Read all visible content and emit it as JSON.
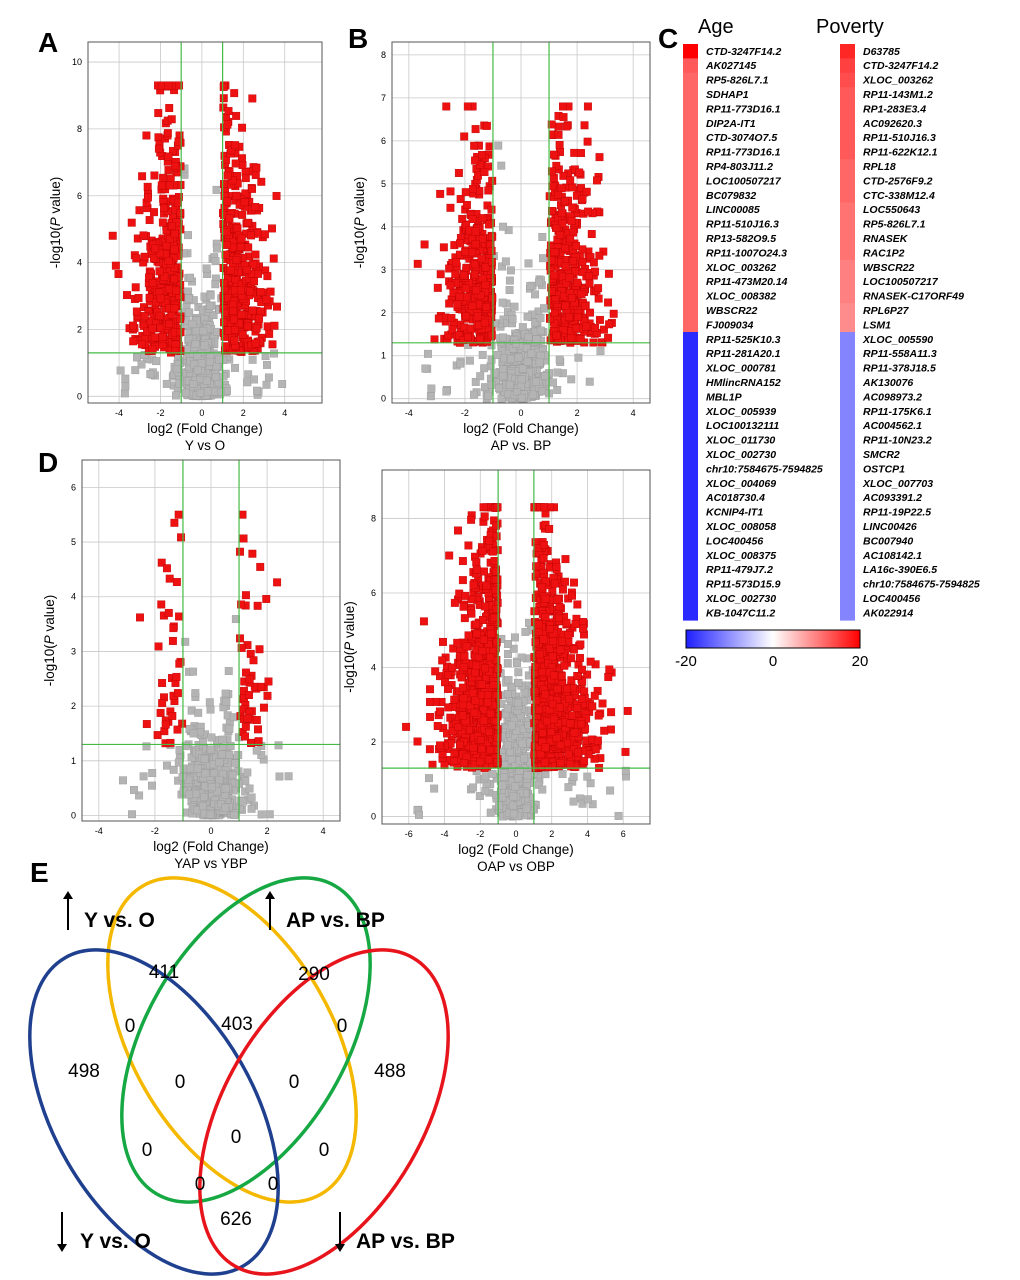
{
  "panels": {
    "A": {
      "letter": "A",
      "title": "Y vs O",
      "xlabel": "log2 (Fold Change)",
      "ylabel_prefix": "-log10(",
      "ylabel_italic": "P",
      "ylabel_suffix": " value)"
    },
    "B": {
      "letter": "B",
      "title": "AP vs. BP",
      "xlabel": "log2 (Fold Change)",
      "ylabel_prefix": "-log10(",
      "ylabel_italic": "P",
      "ylabel_suffix": " value)"
    },
    "C": {
      "letter": "C"
    },
    "D": {
      "letter": "D",
      "title": "YAP vs YBP",
      "xlabel": "log2 (Fold Change)",
      "ylabel_prefix": "-log10(",
      "ylabel_italic": "P",
      "ylabel_suffix": " value)"
    },
    "D2": {
      "title": "OAP vs OBP",
      "xlabel": "log2 (Fold Change)",
      "ylabel_prefix": "-log10(",
      "ylabel_italic": "P",
      "ylabel_suffix": " value)"
    },
    "E": {
      "letter": "E"
    }
  },
  "chart_data": [
    {
      "type": "scatter",
      "panel": "A",
      "title": "Y vs O",
      "xlabel": "log2 (Fold Change)",
      "ylabel": "-log10(P value)",
      "xlim": [
        -5.5,
        5.8
      ],
      "ylim": [
        -0.2,
        10.6
      ],
      "xticks": [
        -4,
        -2,
        0,
        2,
        4
      ],
      "yticks": [
        0,
        2,
        4,
        6,
        8,
        10
      ],
      "thresholds": {
        "x": [
          -1,
          1
        ],
        "y": 1.3
      },
      "colors": {
        "significant": "#ee1111",
        "not_significant": "#b4b4b4",
        "threshold": "#44bb44"
      },
      "shape": {
        "xspread": 1.35,
        "maxAbsX": 4.4,
        "ymax": 9.3,
        "peak": 0.95
      },
      "points": {
        "significant": 750,
        "not_significant": 600
      }
    },
    {
      "type": "scatter",
      "panel": "B",
      "title": "AP vs. BP",
      "xlabel": "log2 (Fold Change)",
      "ylabel": "-log10(P value)",
      "xlim": [
        -4.6,
        4.6
      ],
      "ylim": [
        -0.1,
        8.3
      ],
      "xticks": [
        -4,
        -2,
        0,
        2,
        4
      ],
      "yticks": [
        0,
        1,
        2,
        3,
        4,
        5,
        6,
        7,
        8
      ],
      "thresholds": {
        "x": [
          -1,
          1
        ],
        "y": 1.3
      },
      "colors": {
        "significant": "#ee1111",
        "not_significant": "#b4b4b4",
        "threshold": "#44bb44"
      },
      "shape": {
        "xspread": 1.1,
        "maxAbsX": 3.8,
        "ymax": 6.8,
        "peak": 0.6
      },
      "points": {
        "significant": 700,
        "not_significant": 650
      }
    },
    {
      "type": "scatter",
      "panel": "D",
      "title": "YAP vs YBP",
      "xlabel": "log2 (Fold Change)",
      "ylabel": "-log10(P value)",
      "xlim": [
        -4.6,
        4.6
      ],
      "ylim": [
        -0.1,
        6.5
      ],
      "xticks": [
        -4,
        -2,
        0,
        2,
        4
      ],
      "yticks": [
        0,
        1,
        2,
        3,
        4,
        5,
        6
      ],
      "thresholds": {
        "x": [
          -1,
          1
        ],
        "y": 1.3
      },
      "colors": {
        "significant": "#ee1111",
        "not_significant": "#b4b4b4",
        "threshold": "#44bb44"
      },
      "shape": {
        "xspread": 0.75,
        "maxAbsX": 3.5,
        "ymax": 5.5,
        "peak": 0.4
      },
      "points": {
        "significant": 90,
        "not_significant": 650
      }
    },
    {
      "type": "scatter",
      "panel": "D2",
      "title": "OAP vs OBP",
      "xlabel": "log2 (Fold Change)",
      "ylabel": "-log10(P value)",
      "xlim": [
        -7.5,
        7.5
      ],
      "ylim": [
        -0.2,
        9.3
      ],
      "xticks": [
        -6,
        -4,
        -2,
        0,
        2,
        4,
        6
      ],
      "yticks": [
        0,
        2,
        4,
        6,
        8
      ],
      "thresholds": {
        "x": [
          -1,
          1
        ],
        "y": 1.3
      },
      "colors": {
        "significant": "#ee1111",
        "not_significant": "#b4b4b4",
        "threshold": "#44bb44"
      },
      "shape": {
        "xspread": 1.9,
        "maxAbsX": 6.9,
        "ymax": 8.3,
        "peak": 1.4
      },
      "points": {
        "significant": 1600,
        "not_significant": 700
      }
    },
    {
      "type": "heatmap",
      "panel": "C",
      "columns": [
        {
          "header": "Age",
          "genes": [
            "CTD-3247F14.2",
            "AK027145",
            "RP5-826L7.1",
            "SDHAP1",
            "RP11-773D16.1",
            "DIP2A-IT1",
            "CTD-3074O7.5",
            "RP11-773D16.1",
            "RP4-803J11.2",
            "LOC100507217",
            "BC079832",
            "LINC00085",
            "RP11-510J16.3",
            "RP13-582O9.5",
            "RP11-1007O24.3",
            "XLOC_003262",
            "RP11-473M20.14",
            "XLOC_008382",
            "WBSCR22",
            "FJ009034",
            "RP11-525K10.3",
            "RP11-281A20.1",
            "XLOC_000781",
            "HMlincRNA152",
            "MBL1P",
            "XLOC_005939",
            "LOC100132111",
            "XLOC_011730",
            "XLOC_002730",
            "chr10:7584675-7594825",
            "XLOC_004069",
            "AC018730.4",
            "KCNIP4-IT1",
            "XLOC_008058",
            "LOC400456",
            "XLOC_008375",
            "RP11-479J7.2",
            "RP11-573D15.9",
            "XLOC_002730",
            "KB-1047C11.2"
          ],
          "values": [
            20,
            13,
            12,
            12,
            12,
            12,
            12,
            12,
            12,
            12,
            12,
            12,
            12,
            12,
            12,
            12,
            12,
            12,
            12,
            12,
            -19,
            -19,
            -19,
            -19,
            -19,
            -19,
            -19,
            -19,
            -19,
            -19,
            -19,
            -19,
            -19,
            -19,
            -19,
            -19,
            -19,
            -19,
            -19,
            -19
          ]
        },
        {
          "header": "Poverty",
          "genes": [
            "D63785",
            "CTD-3247F14.2",
            "XLOC_003262",
            "RP11-143M1.2",
            "RP1-283E3.4",
            "AC092620.3",
            "RP11-510J16.3",
            "RP11-622K12.1",
            "RPL18",
            "CTD-2576F9.2",
            "CTC-338M12.4",
            "LOC550643",
            "RP5-826L7.1",
            "RNASEK",
            "RAC1P2",
            "WBSCR22",
            "LOC100507217",
            "RNASEK-C17ORF49",
            "RPL6P27",
            "LSM1",
            "XLOC_005590",
            "RP11-558A11.3",
            "RP11-378J18.5",
            "AK130076",
            "AC098973.2",
            "RP11-175K6.1",
            "AC004562.1",
            "RP11-10N23.2",
            "SMCR2",
            "OSTCP1",
            "XLOC_007703",
            "AC093391.2",
            "RP11-19P22.5",
            "LINC00426",
            "BC007940",
            "AC108142.1",
            "LA16c-390E6.5",
            "chr10:7584675-7594825",
            "LOC400456",
            "AK022914"
          ],
          "values": [
            17,
            15,
            14,
            13,
            13,
            13,
            13,
            13,
            12,
            12,
            12,
            11,
            11,
            11,
            11,
            10,
            10,
            10,
            9,
            9,
            -11,
            -11,
            -11,
            -11,
            -11,
            -11,
            -11,
            -11,
            -11,
            -11,
            -11,
            -11,
            -11,
            -11,
            -11,
            -11,
            -11,
            -11,
            -11,
            -11
          ]
        }
      ],
      "scale": {
        "min": -20,
        "mid": 0,
        "max": 20,
        "min_label": "-20",
        "mid_label": "0",
        "max_label": "20",
        "colors": {
          "low": "#1f1fff",
          "mid": "#ffffff",
          "high": "#ff0000"
        }
      }
    },
    {
      "type": "venn",
      "panel": "E",
      "sets": [
        {
          "label": "Y vs. O",
          "direction": "up",
          "color": "#f5b800"
        },
        {
          "label": "AP vs. BP",
          "direction": "up",
          "color": "#16a843"
        },
        {
          "label": "Y vs. O",
          "direction": "down",
          "color": "#1f3f8f"
        },
        {
          "label": "AP vs. BP",
          "direction": "down",
          "color": "#e8141b"
        }
      ],
      "region_values": [
        "411",
        "290",
        "498",
        "488",
        "0",
        "403",
        "0",
        "0",
        "0",
        "0",
        "0",
        "0",
        "0",
        "0",
        "626"
      ]
    }
  ]
}
